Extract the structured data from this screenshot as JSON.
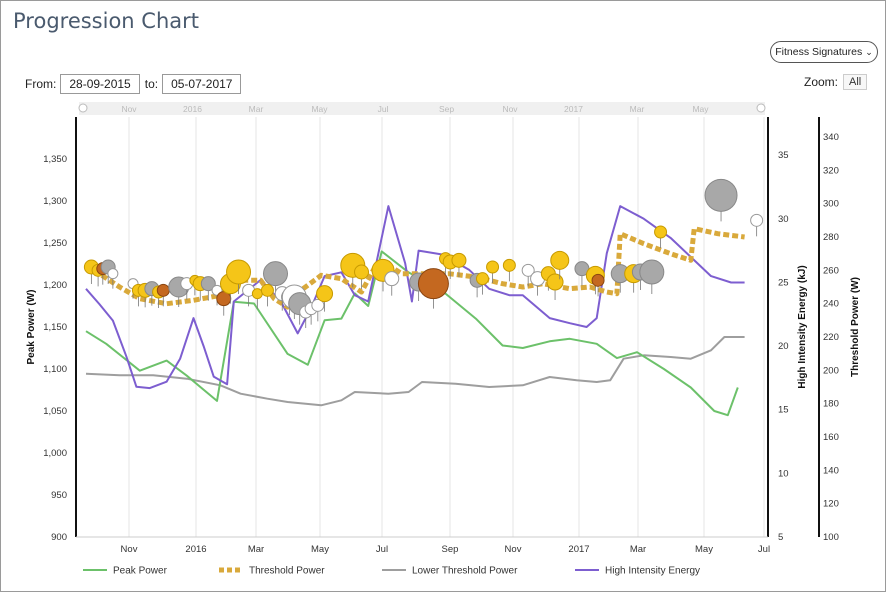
{
  "title": "Progression Chart",
  "signatures_button": "Fitness Signatures",
  "from_label": "From:",
  "from_value": "28-09-2015",
  "to_label": "to:",
  "to_value": "05-07-2017",
  "zoom_label": "Zoom:",
  "zoom_all": "All",
  "colors": {
    "peak": "#6cc16a",
    "threshold": "#d9a93b",
    "lower": "#9e9e9e",
    "hie": "#7d5ed0",
    "bubble_yellow": "#f5c518",
    "bubble_grey": "#a8a8a8",
    "bubble_brown": "#c46820",
    "bubble_white": "#ffffff"
  },
  "chart_data": {
    "type": "line",
    "x_ticks": [
      "Nov",
      "2016",
      "Mar",
      "May",
      "Jul",
      "Sep",
      "Nov",
      "2017",
      "Mar",
      "May",
      "Jul"
    ],
    "navigator_ticks": [
      "Nov",
      "2016",
      "Mar",
      "May",
      "Jul",
      "Sep",
      "Nov",
      "2017",
      "Mar",
      "May"
    ],
    "y_left": {
      "label": "Peak Power (W)",
      "ticks": [
        "900",
        "950",
        "1,000",
        "1,050",
        "1,100",
        "1,150",
        "1,200",
        "1,250",
        "1,300",
        "1,350"
      ],
      "range": [
        900,
        1400
      ]
    },
    "y_right1": {
      "label": "High Intensity Energy (kJ)",
      "ticks": [
        "5",
        "10",
        "15",
        "20",
        "25",
        "30",
        "35"
      ],
      "range": [
        5,
        38
      ]
    },
    "y_right2": {
      "label": "Threshold Power (W)",
      "ticks": [
        "100",
        "120",
        "140",
        "160",
        "180",
        "200",
        "220",
        "240",
        "260",
        "280",
        "300",
        "320",
        "340"
      ],
      "range": [
        100,
        352
      ]
    },
    "series": [
      {
        "name": "Peak Power",
        "axis": "left",
        "style": "solid",
        "points": [
          [
            0,
            1145
          ],
          [
            0.3,
            1130
          ],
          [
            0.8,
            1098
          ],
          [
            1.2,
            1110
          ],
          [
            1.5,
            1092
          ],
          [
            1.95,
            1062
          ],
          [
            2.2,
            1180
          ],
          [
            2.5,
            1178
          ],
          [
            3.0,
            1118
          ],
          [
            3.3,
            1105
          ],
          [
            3.55,
            1158
          ],
          [
            3.8,
            1160
          ],
          [
            4.0,
            1190
          ],
          [
            4.2,
            1175
          ],
          [
            4.4,
            1240
          ],
          [
            4.8,
            1215
          ],
          [
            5.3,
            1193
          ],
          [
            5.8,
            1160
          ],
          [
            6.2,
            1128
          ],
          [
            6.5,
            1125
          ],
          [
            6.9,
            1133
          ],
          [
            7.2,
            1136
          ],
          [
            7.6,
            1130
          ],
          [
            7.9,
            1113
          ],
          [
            8.2,
            1120
          ],
          [
            8.6,
            1100
          ],
          [
            9.0,
            1078
          ],
          [
            9.35,
            1050
          ],
          [
            9.55,
            1045
          ],
          [
            9.7,
            1078
          ]
        ]
      },
      {
        "name": "Threshold Power",
        "axis": "right2",
        "style": "dashed",
        "points": [
          [
            0,
            262
          ],
          [
            0.2,
            258
          ],
          [
            0.5,
            250
          ],
          [
            0.8,
            243
          ],
          [
            1.2,
            240
          ],
          [
            1.6,
            242
          ],
          [
            2.0,
            245
          ],
          [
            2.3,
            254
          ],
          [
            2.6,
            254
          ],
          [
            2.8,
            243
          ],
          [
            3.0,
            238
          ],
          [
            3.2,
            248
          ],
          [
            3.5,
            257
          ],
          [
            3.8,
            255
          ],
          [
            4.1,
            247
          ],
          [
            4.3,
            262
          ],
          [
            4.5,
            263
          ],
          [
            4.7,
            258
          ],
          [
            5.0,
            258
          ],
          [
            5.4,
            258
          ],
          [
            5.8,
            256
          ],
          [
            6.2,
            252
          ],
          [
            6.5,
            250
          ],
          [
            6.8,
            252
          ],
          [
            7.2,
            249
          ],
          [
            7.5,
            250
          ],
          [
            7.75,
            247
          ],
          [
            7.9,
            246
          ],
          [
            7.95,
            282
          ],
          [
            8.3,
            276
          ],
          [
            8.7,
            270
          ],
          [
            9.0,
            266
          ],
          [
            9.05,
            285
          ],
          [
            9.4,
            282
          ],
          [
            9.8,
            280
          ]
        ]
      },
      {
        "name": "Lower Threshold Power",
        "axis": "right2",
        "style": "solid",
        "points": [
          [
            0,
            198
          ],
          [
            0.5,
            197
          ],
          [
            1.0,
            197
          ],
          [
            1.5,
            195
          ],
          [
            2.0,
            191
          ],
          [
            2.3,
            186
          ],
          [
            2.7,
            183
          ],
          [
            3.0,
            181
          ],
          [
            3.5,
            179
          ],
          [
            3.8,
            182
          ],
          [
            4.0,
            187
          ],
          [
            4.5,
            186
          ],
          [
            4.8,
            187
          ],
          [
            5.0,
            193
          ],
          [
            5.5,
            192
          ],
          [
            6.0,
            190
          ],
          [
            6.5,
            191
          ],
          [
            6.9,
            196
          ],
          [
            7.3,
            194
          ],
          [
            7.6,
            193
          ],
          [
            7.8,
            194
          ],
          [
            8.0,
            207
          ],
          [
            8.3,
            209
          ],
          [
            8.7,
            208
          ],
          [
            9.0,
            207
          ],
          [
            9.3,
            212
          ],
          [
            9.5,
            220
          ],
          [
            9.8,
            220
          ]
        ]
      },
      {
        "name": "High Intensity Energy",
        "axis": "right1",
        "style": "solid",
        "points": [
          [
            0,
            24.5
          ],
          [
            0.2,
            23.3
          ],
          [
            0.4,
            22.0
          ],
          [
            0.6,
            19.2
          ],
          [
            0.75,
            16.8
          ],
          [
            0.95,
            16.7
          ],
          [
            1.2,
            17.2
          ],
          [
            1.4,
            19.0
          ],
          [
            1.6,
            22.2
          ],
          [
            1.75,
            20.0
          ],
          [
            1.9,
            17.6
          ],
          [
            2.1,
            17.0
          ],
          [
            2.2,
            23.5
          ],
          [
            2.6,
            25.2
          ],
          [
            2.9,
            23.5
          ],
          [
            3.15,
            21.0
          ],
          [
            3.35,
            23.0
          ],
          [
            3.55,
            25.5
          ],
          [
            3.8,
            25.8
          ],
          [
            4.0,
            24.0
          ],
          [
            4.2,
            23.5
          ],
          [
            4.5,
            31.0
          ],
          [
            4.75,
            26.5
          ],
          [
            4.85,
            23.5
          ],
          [
            4.95,
            27.5
          ],
          [
            5.3,
            27.2
          ],
          [
            5.7,
            26.0
          ],
          [
            6.0,
            24.5
          ],
          [
            6.3,
            24.0
          ],
          [
            6.5,
            24.0
          ],
          [
            6.9,
            22.2
          ],
          [
            7.2,
            21.8
          ],
          [
            7.45,
            21.5
          ],
          [
            7.6,
            22.2
          ],
          [
            7.75,
            27.3
          ],
          [
            7.95,
            31.0
          ],
          [
            8.3,
            30.0
          ],
          [
            8.7,
            28.5
          ],
          [
            9.0,
            27.0
          ],
          [
            9.3,
            25.5
          ],
          [
            9.6,
            25.0
          ],
          [
            9.8,
            25.0
          ]
        ]
      }
    ],
    "bubbles": [
      {
        "x": 0.08,
        "tp": 262,
        "r": 7,
        "c": "yellow"
      },
      {
        "x": 0.18,
        "tp": 260,
        "r": 6,
        "c": "yellow"
      },
      {
        "x": 0.25,
        "tp": 261,
        "r": 6,
        "c": "brown"
      },
      {
        "x": 0.33,
        "tp": 262,
        "r": 7,
        "c": "grey"
      },
      {
        "x": 0.4,
        "tp": 258,
        "r": 5,
        "c": "white"
      },
      {
        "x": 0.7,
        "tp": 252,
        "r": 5,
        "c": "white"
      },
      {
        "x": 0.78,
        "tp": 248,
        "r": 6,
        "c": "yellow"
      },
      {
        "x": 0.88,
        "tp": 248,
        "r": 7,
        "c": "yellow"
      },
      {
        "x": 0.98,
        "tp": 249,
        "r": 7,
        "c": "grey"
      },
      {
        "x": 1.08,
        "tp": 247,
        "r": 6,
        "c": "yellow"
      },
      {
        "x": 1.15,
        "tp": 248,
        "r": 6,
        "c": "brown"
      },
      {
        "x": 1.38,
        "tp": 250,
        "r": 10,
        "c": "grey"
      },
      {
        "x": 1.5,
        "tp": 252,
        "r": 6,
        "c": "white"
      },
      {
        "x": 1.62,
        "tp": 254,
        "r": 5,
        "c": "yellow"
      },
      {
        "x": 1.7,
        "tp": 252,
        "r": 7,
        "c": "yellow"
      },
      {
        "x": 1.82,
        "tp": 252,
        "r": 7,
        "c": "grey"
      },
      {
        "x": 1.95,
        "tp": 248,
        "r": 5,
        "c": "white"
      },
      {
        "x": 2.05,
        "tp": 243,
        "r": 7,
        "c": "brown"
      },
      {
        "x": 2.15,
        "tp": 252,
        "r": 10,
        "c": "yellow"
      },
      {
        "x": 2.27,
        "tp": 259,
        "r": 12,
        "c": "yellow"
      },
      {
        "x": 2.42,
        "tp": 248,
        "r": 6,
        "c": "white"
      },
      {
        "x": 2.55,
        "tp": 246,
        "r": 5,
        "c": "yellow"
      },
      {
        "x": 2.82,
        "tp": 258,
        "r": 12,
        "c": "grey"
      },
      {
        "x": 2.7,
        "tp": 248,
        "r": 6,
        "c": "yellow"
      },
      {
        "x": 2.92,
        "tp": 246,
        "r": 7,
        "c": "white"
      },
      {
        "x": 3.03,
        "tp": 244,
        "r": 8,
        "c": "grey"
      },
      {
        "x": 3.1,
        "tp": 244,
        "r": 12,
        "c": "white"
      },
      {
        "x": 3.18,
        "tp": 240,
        "r": 11,
        "c": "grey"
      },
      {
        "x": 3.27,
        "tp": 235,
        "r": 6,
        "c": "white"
      },
      {
        "x": 3.35,
        "tp": 237,
        "r": 6,
        "c": "white"
      },
      {
        "x": 3.45,
        "tp": 239,
        "r": 6,
        "c": "white"
      },
      {
        "x": 3.55,
        "tp": 246,
        "r": 8,
        "c": "yellow"
      },
      {
        "x": 3.97,
        "tp": 263,
        "r": 12,
        "c": "yellow"
      },
      {
        "x": 4.1,
        "tp": 259,
        "r": 7,
        "c": "yellow"
      },
      {
        "x": 4.42,
        "tp": 260,
        "r": 11,
        "c": "yellow"
      },
      {
        "x": 4.55,
        "tp": 255,
        "r": 7,
        "c": "white"
      },
      {
        "x": 4.95,
        "tp": 253,
        "r": 9,
        "c": "grey"
      },
      {
        "x": 5.17,
        "tp": 252,
        "r": 15,
        "c": "brown"
      },
      {
        "x": 5.35,
        "tp": 267,
        "r": 6,
        "c": "yellow"
      },
      {
        "x": 5.42,
        "tp": 265,
        "r": 7,
        "c": "yellow"
      },
      {
        "x": 5.55,
        "tp": 266,
        "r": 7,
        "c": "yellow"
      },
      {
        "x": 5.82,
        "tp": 254,
        "r": 7,
        "c": "grey"
      },
      {
        "x": 5.9,
        "tp": 255,
        "r": 6,
        "c": "yellow"
      },
      {
        "x": 6.05,
        "tp": 262,
        "r": 6,
        "c": "yellow"
      },
      {
        "x": 6.3,
        "tp": 263,
        "r": 6,
        "c": "yellow"
      },
      {
        "x": 6.58,
        "tp": 260,
        "r": 6,
        "c": "white"
      },
      {
        "x": 6.72,
        "tp": 255,
        "r": 7,
        "c": "white"
      },
      {
        "x": 6.88,
        "tp": 258,
        "r": 7,
        "c": "yellow"
      },
      {
        "x": 6.98,
        "tp": 253,
        "r": 8,
        "c": "yellow"
      },
      {
        "x": 7.05,
        "tp": 266,
        "r": 9,
        "c": "yellow"
      },
      {
        "x": 7.38,
        "tp": 261,
        "r": 7,
        "c": "grey"
      },
      {
        "x": 7.58,
        "tp": 257,
        "r": 9,
        "c": "yellow"
      },
      {
        "x": 7.62,
        "tp": 254,
        "r": 6,
        "c": "brown"
      },
      {
        "x": 7.95,
        "tp": 258,
        "r": 9,
        "c": "grey"
      },
      {
        "x": 8.15,
        "tp": 258,
        "r": 9,
        "c": "yellow"
      },
      {
        "x": 8.25,
        "tp": 259,
        "r": 8,
        "c": "grey"
      },
      {
        "x": 8.42,
        "tp": 259,
        "r": 12,
        "c": "grey"
      },
      {
        "x": 8.55,
        "tp": 283,
        "r": 6,
        "c": "yellow"
      },
      {
        "x": 9.45,
        "tp": 305,
        "r": 16,
        "c": "grey"
      },
      {
        "x": 9.98,
        "tp": 290,
        "r": 6,
        "c": "white"
      }
    ],
    "legend": [
      "Peak Power",
      "Threshold Power",
      "Lower Threshold Power",
      "High Intensity Energy"
    ]
  }
}
